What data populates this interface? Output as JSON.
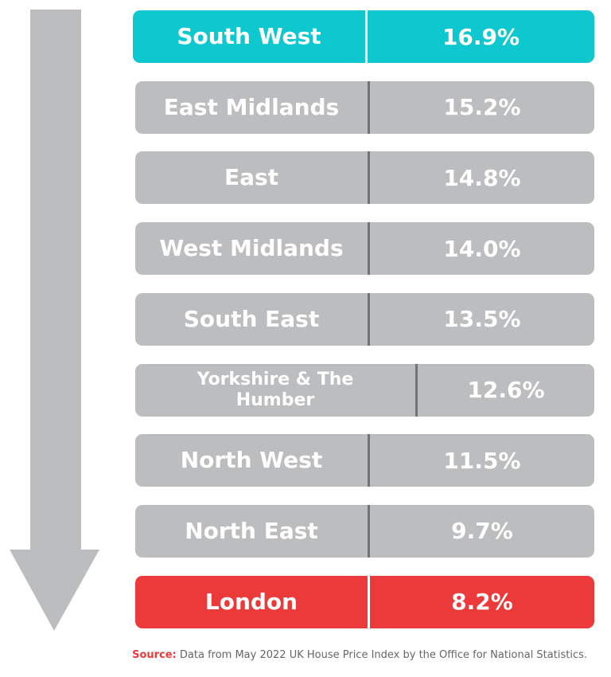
{
  "rows": [
    {
      "region": "South West",
      "value": "16.9%"
    },
    {
      "region": "East Midlands",
      "value": "15.2%"
    },
    {
      "region": "East",
      "value": "14.8%"
    },
    {
      "region": "West Midlands",
      "value": "14.0%"
    },
    {
      "region": "South East",
      "value": "13.5%"
    },
    {
      "region": "Yorkshire & The Humber",
      "value": "12.6%"
    },
    {
      "region": "North West",
      "value": "11.5%"
    },
    {
      "region": "North East",
      "value": "9.7%"
    },
    {
      "region": "London",
      "value": "8.2%"
    }
  ],
  "source": {
    "label": "Source:",
    "text": "Data from May 2022 UK House Price Index by the Office for National Statistics."
  }
}
